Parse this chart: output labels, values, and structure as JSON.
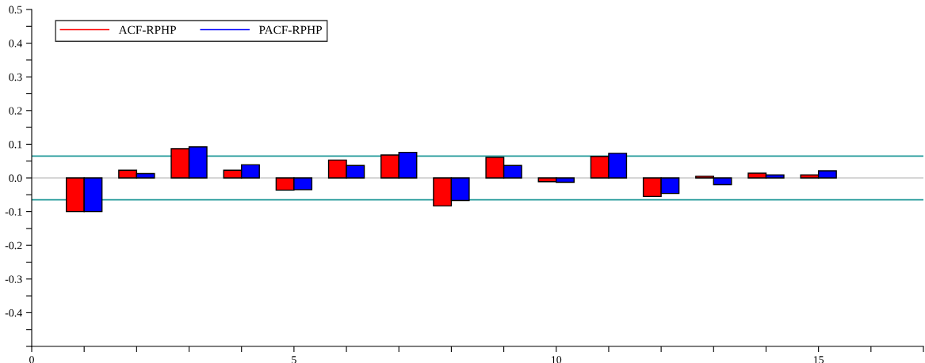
{
  "chart_data": {
    "type": "bar",
    "x": [
      1,
      2,
      3,
      4,
      5,
      6,
      7,
      8,
      9,
      10,
      11,
      12,
      13,
      14,
      15
    ],
    "series": [
      {
        "name": "ACF-RPHP",
        "color": "#ff0000",
        "values": [
          -0.1,
          0.023,
          0.087,
          0.023,
          -0.036,
          0.053,
          0.068,
          -0.083,
          0.061,
          -0.011,
          0.064,
          -0.055,
          0.005,
          0.014,
          0.009
        ]
      },
      {
        "name": "PACF-RPHP",
        "color": "#0000ff",
        "values": [
          -0.1,
          0.013,
          0.092,
          0.039,
          -0.035,
          0.037,
          0.076,
          -0.067,
          0.037,
          -0.013,
          0.073,
          -0.046,
          -0.02,
          0.009,
          0.021
        ]
      }
    ],
    "xlim": [
      0,
      17
    ],
    "xticks": [
      0,
      {
        "value": 1,
        "label": null
      },
      {
        "value": 2,
        "label": null
      },
      {
        "value": 3,
        "label": null
      },
      {
        "value": 4,
        "label": null
      },
      5,
      {
        "value": 6,
        "label": null
      },
      {
        "value": 7,
        "label": null
      },
      {
        "value": 8,
        "label": null
      },
      {
        "value": 9,
        "label": null
      },
      10,
      {
        "value": 11,
        "label": null
      },
      {
        "value": 12,
        "label": null
      },
      {
        "value": 13,
        "label": null
      },
      {
        "value": 14,
        "label": null
      },
      15,
      {
        "value": 16,
        "label": null
      },
      {
        "value": 17,
        "label": null
      }
    ],
    "ylim": [
      -0.5,
      0.5
    ],
    "yticks": [
      {
        "value": -0.5,
        "label": null
      },
      {
        "value": -0.45,
        "label": null
      },
      {
        "value": -0.4,
        "label": "-0.4"
      },
      {
        "value": -0.35,
        "label": null
      },
      {
        "value": -0.3,
        "label": "-0.3"
      },
      {
        "value": -0.25,
        "label": null
      },
      {
        "value": -0.2,
        "label": "-0.2"
      },
      {
        "value": -0.15,
        "label": null
      },
      {
        "value": -0.1,
        "label": "-0.1"
      },
      {
        "value": -0.05,
        "label": null
      },
      {
        "value": 0.0,
        "label": "0.0"
      },
      {
        "value": 0.05,
        "label": null
      },
      {
        "value": 0.1,
        "label": "0.1"
      },
      {
        "value": 0.15,
        "label": null
      },
      {
        "value": 0.2,
        "label": "0.2"
      },
      {
        "value": 0.25,
        "label": null
      },
      {
        "value": 0.3,
        "label": "0.3"
      },
      {
        "value": 0.35,
        "label": null
      },
      {
        "value": 0.4,
        "label": "0.4"
      },
      {
        "value": 0.45,
        "label": null
      },
      {
        "value": 0.5,
        "label": "0.5"
      }
    ],
    "ref_lines": [
      {
        "axis": "y",
        "value": 0.0,
        "color": "#c8c8c8"
      },
      {
        "axis": "y",
        "value": 0.065,
        "color": "#229999"
      },
      {
        "axis": "y",
        "value": -0.065,
        "color": "#229999"
      }
    ],
    "grid": false,
    "legend": "top left"
  }
}
